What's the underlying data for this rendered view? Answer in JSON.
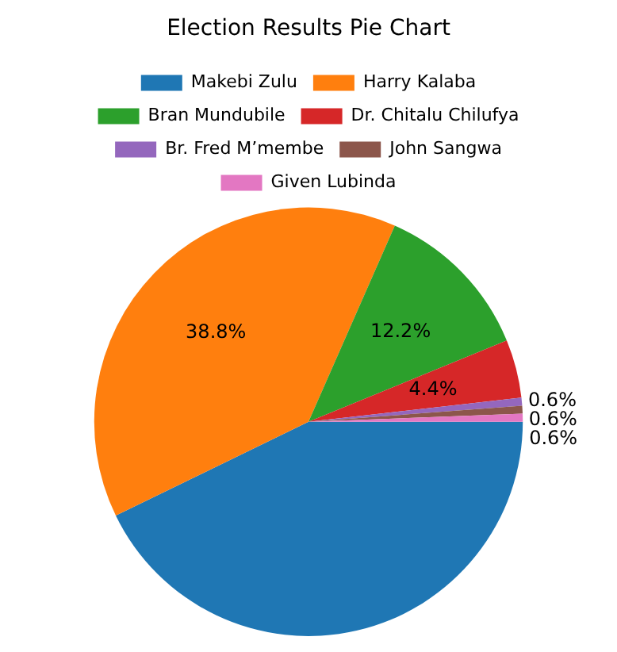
{
  "chart_data": {
    "type": "pie",
    "title": "Election Results Pie Chart",
    "categories": [
      "Makebi Zulu",
      "Harry Kalaba",
      "Bran Mundubile",
      "Dr. Chitalu Chilufya",
      "Br. Fred M’membe",
      "John Sangwa",
      "Given Lubinda"
    ],
    "values": [
      42.8,
      38.8,
      12.2,
      4.4,
      0.6,
      0.6,
      0.6
    ],
    "colors": [
      "#1f77b4",
      "#ff7f0e",
      "#2ca02c",
      "#d62728",
      "#9467bd",
      "#8c564b",
      "#e377c2"
    ],
    "value_labels": [
      null,
      "38.8%",
      "12.2%",
      "4.4%",
      "0.6%",
      "0.6%",
      "0.6%"
    ],
    "legend": "top"
  }
}
